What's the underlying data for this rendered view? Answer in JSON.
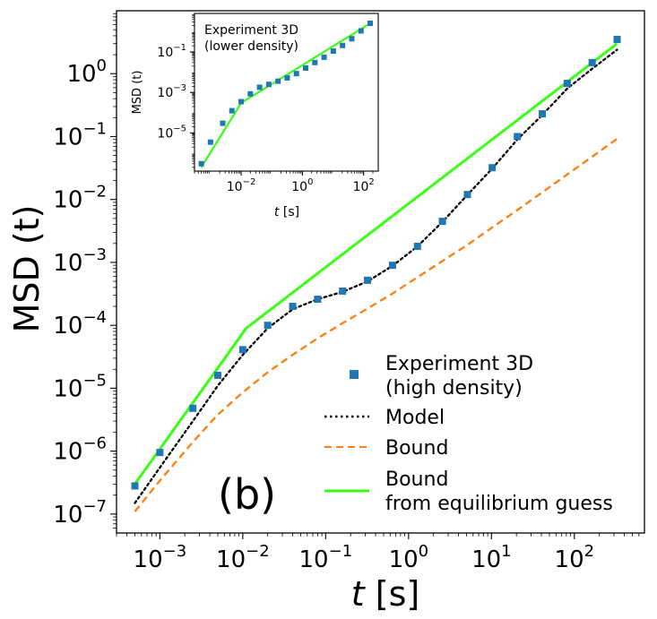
{
  "chart_data": [
    {
      "type": "scatter",
      "panel_label": "(b)",
      "xlabel_var": "t",
      "xlabel_unit": "[s]",
      "ylabel": "MSD (t)",
      "xscale": "log",
      "yscale": "log",
      "xlim": [
        0.0003,
        700
      ],
      "ylim": [
        5e-08,
        10
      ],
      "x_ticks": [
        {
          "base": "10",
          "exp": "−3",
          "value": 0.001
        },
        {
          "base": "10",
          "exp": "−2",
          "value": 0.01
        },
        {
          "base": "10",
          "exp": "−1",
          "value": 0.1
        },
        {
          "base": "10",
          "exp": "0",
          "value": 1
        },
        {
          "base": "10",
          "exp": "1",
          "value": 10
        },
        {
          "base": "10",
          "exp": "2",
          "value": 100
        }
      ],
      "y_ticks": [
        {
          "base": "10",
          "exp": "−7",
          "value": 1e-07
        },
        {
          "base": "10",
          "exp": "−6",
          "value": 1e-06
        },
        {
          "base": "10",
          "exp": "−5",
          "value": 1e-05
        },
        {
          "base": "10",
          "exp": "−4",
          "value": 0.0001
        },
        {
          "base": "10",
          "exp": "−3",
          "value": 0.001
        },
        {
          "base": "10",
          "exp": "−2",
          "value": 0.01
        },
        {
          "base": "10",
          "exp": "−1",
          "value": 0.1
        },
        {
          "base": "10",
          "exp": "0",
          "value": 1
        }
      ],
      "legend": {
        "placement": "lower right",
        "entries": [
          {
            "label_lines": [
              "Experiment 3D",
              "(high density)"
            ],
            "style": "marker"
          },
          {
            "label_lines": [
              "Model"
            ],
            "style": "dotted"
          },
          {
            "label_lines": [
              "Bound"
            ],
            "style": "dashed"
          },
          {
            "label_lines": [
              "Bound",
              "from equilibrium guess"
            ],
            "style": "solid"
          }
        ]
      },
      "series": [
        {
          "key": "experiment",
          "color": "#1f77b4",
          "marker": "square",
          "x": [
            0.0005,
            0.001,
            0.0025,
            0.005,
            0.01,
            0.02,
            0.04,
            0.08,
            0.16,
            0.32,
            0.64,
            1.28,
            2.56,
            5.12,
            10.2,
            20.5,
            41,
            82,
            164,
            328
          ],
          "y": [
            2.8e-07,
            9.5e-07,
            4.8e-06,
            1.6e-05,
            4.1e-05,
            0.0001,
            0.0002,
            0.00026,
            0.00035,
            0.00052,
            0.0009,
            0.0018,
            0.0045,
            0.012,
            0.032,
            0.1,
            0.23,
            0.7,
            1.5,
            3.5
          ]
        },
        {
          "key": "model",
          "color": "#000000",
          "line": "dotted",
          "x": [
            0.0005,
            0.001,
            0.0025,
            0.005,
            0.01,
            0.02,
            0.04,
            0.08,
            0.16,
            0.32,
            0.64,
            1.28,
            2.56,
            5.12,
            10.2,
            20.5,
            41,
            82,
            164,
            328
          ],
          "y": [
            1.5e-07,
            5.5e-07,
            3e-06,
            1.1e-05,
            3.4e-05,
            9e-05,
            0.00018,
            0.00026,
            0.00034,
            0.0005,
            0.00088,
            0.0018,
            0.0044,
            0.0118,
            0.031,
            0.09,
            0.22,
            0.58,
            1.2,
            2.4
          ]
        },
        {
          "key": "bound",
          "color": "#ff7f0e",
          "line": "dashed",
          "x": [
            0.0005,
            0.001,
            0.0025,
            0.005,
            0.01,
            0.02,
            0.04,
            0.08,
            0.16,
            0.32,
            0.64,
            1.28,
            2.56,
            5.12,
            10.2,
            20.5,
            41,
            82,
            164,
            328
          ],
          "y": [
            1.1e-07,
            3.4e-07,
            1.4e-06,
            3.8e-06,
            8.6e-06,
            1.8e-05,
            3.4e-05,
            6.2e-05,
            0.000108,
            0.000185,
            0.00032,
            0.00058,
            0.00105,
            0.0019,
            0.0036,
            0.0068,
            0.013,
            0.025,
            0.048,
            0.092
          ]
        },
        {
          "key": "equilibrium",
          "color": "#39ff14",
          "line": "solid",
          "x": [
            0.0005,
            0.011,
            328
          ],
          "y": [
            3e-07,
            9e-05,
            3.0
          ]
        }
      ]
    },
    {
      "type": "scatter",
      "title_lines": [
        "Experiment 3D",
        "(lower density)"
      ],
      "xlabel_var": "t",
      "xlabel_unit": "[s]",
      "ylabel": "MSD (t)",
      "xscale": "log",
      "yscale": "log",
      "xlim": [
        0.0003,
        300
      ],
      "ylim": [
        1.3e-07,
        8
      ],
      "x_ticks": [
        {
          "base": "10",
          "exp": "−2",
          "value": 0.01
        },
        {
          "base": "10",
          "exp": "0",
          "value": 1
        },
        {
          "base": "10",
          "exp": "2",
          "value": 100
        }
      ],
      "y_ticks": [
        {
          "base": "10",
          "exp": "−5",
          "value": 1e-05
        },
        {
          "base": "10",
          "exp": "−3",
          "value": 0.001
        },
        {
          "base": "10",
          "exp": "−1",
          "value": 0.1
        }
      ],
      "series": [
        {
          "key": "experiment",
          "color": "#1f77b4",
          "marker": "square",
          "x": [
            0.0005,
            0.001,
            0.0025,
            0.005,
            0.01,
            0.02,
            0.04,
            0.08,
            0.16,
            0.32,
            0.64,
            1.28,
            2.56,
            5.12,
            10.2,
            20.5,
            41,
            82,
            164
          ],
          "y": [
            3e-07,
            3.5e-06,
            3e-05,
            0.000125,
            0.00035,
            0.00085,
            0.0018,
            0.0025,
            0.0036,
            0.0052,
            0.0085,
            0.016,
            0.03,
            0.055,
            0.11,
            0.21,
            0.45,
            1.1,
            2.6
          ]
        },
        {
          "key": "equilibrium",
          "color": "#39ff14",
          "line": "solid",
          "x": [
            0.0005,
            0.01,
            164
          ],
          "y": [
            2e-07,
            0.0003,
            2.6
          ]
        }
      ]
    }
  ]
}
